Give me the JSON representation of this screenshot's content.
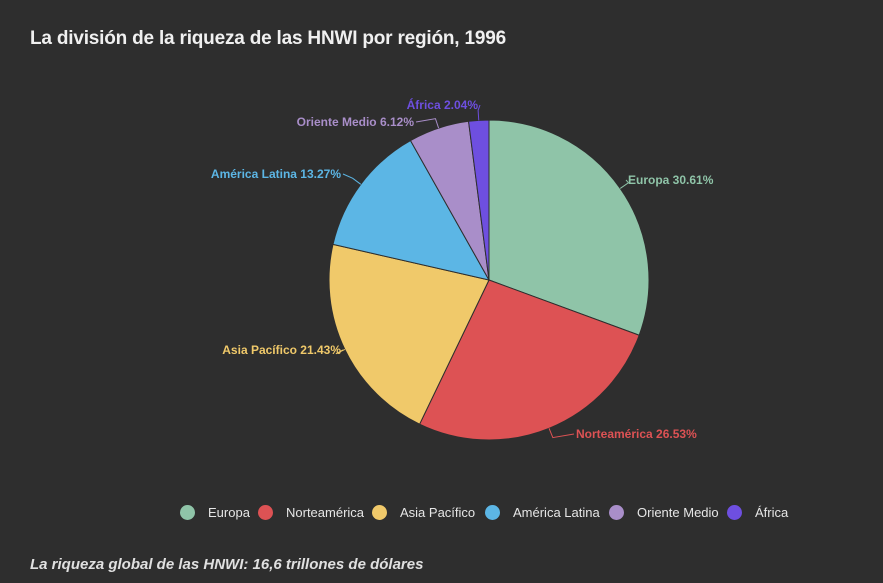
{
  "chart_data": {
    "type": "pie",
    "title": "La división de la riqueza de las HNWI por región, 1996",
    "categories": [
      "Europa",
      "Norteamérica",
      "Asia Pacífico",
      "América Latina",
      "Oriente Medio",
      "África"
    ],
    "values": [
      30.61,
      26.53,
      21.43,
      13.27,
      6.12,
      2.04
    ],
    "data_labels": [
      "Europa 30.61%",
      "Norteamérica 26.53%",
      "Asia Pacífico 21.43%",
      "América Latina 13.27%",
      "Oriente Medio 6.12%",
      "África 2.04%"
    ],
    "colors": [
      "#8fc4a8",
      "#dd5254",
      "#f0c96a",
      "#5cb6e5",
      "#a98ec9",
      "#6e4fe0"
    ],
    "legend_position": "bottom-center",
    "start_angle": "top, clockwise"
  },
  "legend": {
    "items": [
      {
        "label": "Europa"
      },
      {
        "label": "Norteamérica"
      },
      {
        "label": "Asia Pacífico"
      },
      {
        "label": "América Latina"
      },
      {
        "label": "Oriente Medio"
      },
      {
        "label": "África"
      }
    ]
  },
  "footnote": "La riqueza global de las HNWI: 16,6 trillones de dólares"
}
